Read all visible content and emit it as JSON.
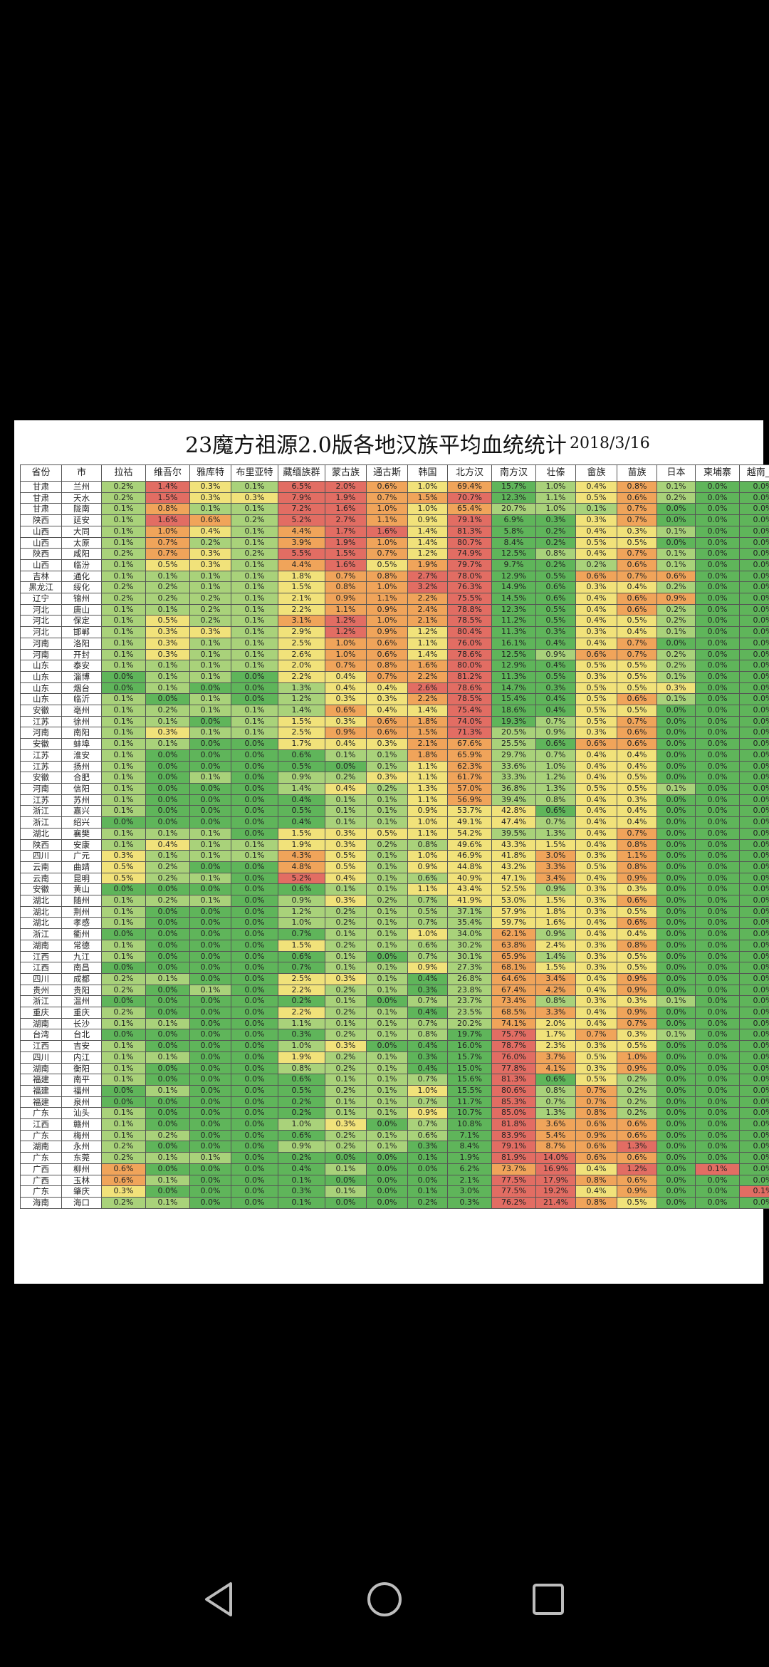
{
  "doc": {
    "title": "23魔方祖源2.0版各地汉族平均血统统计",
    "date": "2018/3/16"
  },
  "table": {
    "headers": [
      "省份",
      "市",
      "拉祜",
      "维吾尔",
      "雅库特",
      "布里亚特",
      "藏缅族群",
      "蒙古族",
      "通古斯",
      "韩国",
      "北方汉",
      "南方汉",
      "壮傣",
      "畲族",
      "苗族",
      "日本",
      "柬埔寨",
      "越南_京"
    ],
    "rows": [
      [
        "甘肃",
        "兰州",
        0.2,
        1.4,
        0.3,
        0.1,
        6.5,
        2.0,
        0.6,
        1.0,
        69.4,
        15.7,
        1.0,
        0.4,
        0.8,
        0.1,
        0.0,
        0.0
      ],
      [
        "甘肃",
        "天水",
        0.2,
        1.5,
        0.3,
        0.3,
        7.9,
        1.9,
        0.7,
        1.5,
        70.7,
        12.3,
        1.1,
        0.5,
        0.6,
        0.2,
        0.0,
        0.0
      ],
      [
        "甘肃",
        "陇南",
        0.1,
        0.8,
        0.1,
        0.1,
        7.2,
        1.6,
        1.0,
        1.0,
        65.4,
        20.7,
        1.0,
        0.1,
        0.7,
        0.0,
        0.0,
        0.0
      ],
      [
        "陕西",
        "延安",
        0.1,
        1.6,
        0.6,
        0.2,
        5.2,
        2.7,
        1.1,
        0.9,
        79.1,
        6.9,
        0.3,
        0.3,
        0.7,
        0.0,
        0.0,
        0.0
      ],
      [
        "山西",
        "大同",
        0.1,
        1.0,
        0.4,
        0.1,
        4.4,
        1.7,
        1.6,
        1.4,
        81.3,
        5.8,
        0.2,
        0.4,
        0.3,
        0.1,
        0.0,
        0.0
      ],
      [
        "山西",
        "太原",
        0.1,
        0.7,
        0.2,
        0.1,
        3.9,
        1.9,
        1.0,
        1.4,
        80.7,
        8.4,
        0.2,
        0.5,
        0.5,
        0.0,
        0.0,
        0.0
      ],
      [
        "陕西",
        "咸阳",
        0.2,
        0.7,
        0.3,
        0.2,
        5.5,
        1.5,
        0.7,
        1.2,
        74.9,
        12.5,
        0.8,
        0.4,
        0.7,
        0.1,
        0.0,
        0.0
      ],
      [
        "山西",
        "临汾",
        0.1,
        0.5,
        0.3,
        0.1,
        4.4,
        1.6,
        0.5,
        1.9,
        79.7,
        9.7,
        0.2,
        0.2,
        0.6,
        0.1,
        0.0,
        0.0
      ],
      [
        "吉林",
        "通化",
        0.1,
        0.1,
        0.1,
        0.1,
        1.8,
        0.7,
        0.8,
        2.7,
        78.0,
        12.9,
        0.5,
        0.6,
        0.7,
        0.6,
        0.0,
        0.0
      ],
      [
        "黑龙江",
        "绥化",
        0.2,
        0.2,
        0.1,
        0.1,
        1.5,
        0.8,
        1.0,
        3.2,
        76.3,
        14.9,
        0.6,
        0.3,
        0.4,
        0.2,
        0.0,
        0.0
      ],
      [
        "辽宁",
        "锦州",
        0.2,
        0.2,
        0.2,
        0.1,
        2.1,
        0.9,
        1.1,
        2.2,
        75.5,
        14.5,
        0.6,
        0.4,
        0.6,
        0.9,
        0.0,
        0.0
      ],
      [
        "河北",
        "唐山",
        0.1,
        0.1,
        0.2,
        0.1,
        2.2,
        1.1,
        0.9,
        2.4,
        78.8,
        12.3,
        0.5,
        0.4,
        0.6,
        0.2,
        0.0,
        0.0
      ],
      [
        "河北",
        "保定",
        0.1,
        0.5,
        0.2,
        0.1,
        3.1,
        1.2,
        1.0,
        2.1,
        78.5,
        11.2,
        0.5,
        0.4,
        0.5,
        0.2,
        0.0,
        0.0
      ],
      [
        "河北",
        "邯郸",
        0.1,
        0.3,
        0.3,
        0.1,
        2.9,
        1.2,
        0.9,
        1.2,
        80.4,
        11.3,
        0.3,
        0.3,
        0.4,
        0.1,
        0.0,
        0.0
      ],
      [
        "河南",
        "洛阳",
        0.1,
        0.3,
        0.1,
        0.1,
        2.5,
        1.0,
        0.6,
        1.1,
        76.0,
        16.1,
        0.4,
        0.4,
        0.7,
        0.0,
        0.0,
        0.0
      ],
      [
        "河南",
        "开封",
        0.1,
        0.3,
        0.1,
        0.1,
        2.6,
        1.0,
        0.6,
        1.4,
        78.6,
        12.5,
        0.9,
        0.6,
        0.7,
        0.2,
        0.0,
        0.0
      ],
      [
        "山东",
        "泰安",
        0.1,
        0.1,
        0.1,
        0.1,
        2.0,
        0.7,
        0.8,
        1.6,
        80.0,
        12.9,
        0.4,
        0.5,
        0.5,
        0.2,
        0.0,
        0.0
      ],
      [
        "山东",
        "淄博",
        0.0,
        0.1,
        0.1,
        0.0,
        2.2,
        0.4,
        0.7,
        2.2,
        81.2,
        11.3,
        0.5,
        0.3,
        0.5,
        0.1,
        0.0,
        0.0
      ],
      [
        "山东",
        "烟台",
        0.0,
        0.1,
        0.0,
        0.0,
        1.3,
        0.4,
        0.4,
        2.6,
        78.6,
        14.7,
        0.3,
        0.5,
        0.5,
        0.3,
        0.0,
        0.0
      ],
      [
        "山东",
        "临沂",
        0.1,
        0.0,
        0.1,
        0.0,
        1.2,
        0.3,
        0.3,
        2.2,
        78.5,
        15.4,
        0.4,
        0.5,
        0.6,
        0.1,
        0.0,
        0.0
      ],
      [
        "安徽",
        "亳州",
        0.1,
        0.2,
        0.1,
        0.1,
        1.4,
        0.6,
        0.4,
        1.4,
        75.4,
        18.6,
        0.4,
        0.5,
        0.5,
        0.0,
        0.0,
        0.0
      ],
      [
        "江苏",
        "徐州",
        0.1,
        0.1,
        0.0,
        0.1,
        1.5,
        0.3,
        0.6,
        1.8,
        74.0,
        19.3,
        0.7,
        0.5,
        0.7,
        0.0,
        0.0,
        0.0
      ],
      [
        "河南",
        "南阳",
        0.1,
        0.3,
        0.1,
        0.1,
        2.5,
        0.9,
        0.6,
        1.5,
        71.3,
        20.5,
        0.9,
        0.3,
        0.6,
        0.0,
        0.0,
        0.0
      ],
      [
        "安徽",
        "蚌埠",
        0.1,
        0.1,
        0.0,
        0.0,
        1.7,
        0.4,
        0.3,
        2.1,
        67.6,
        25.5,
        0.6,
        0.6,
        0.6,
        0.0,
        0.0,
        0.0
      ],
      [
        "江苏",
        "淮安",
        0.1,
        0.0,
        0.0,
        0.0,
        0.6,
        0.1,
        0.1,
        1.8,
        65.9,
        29.7,
        0.7,
        0.4,
        0.4,
        0.0,
        0.0,
        0.0
      ],
      [
        "江苏",
        "扬州",
        0.1,
        0.0,
        0.0,
        0.0,
        0.5,
        0.0,
        0.1,
        1.1,
        62.3,
        33.6,
        1.0,
        0.4,
        0.4,
        0.0,
        0.0,
        0.0
      ],
      [
        "安徽",
        "合肥",
        0.1,
        0.0,
        0.1,
        0.0,
        0.9,
        0.2,
        0.3,
        1.1,
        61.7,
        33.3,
        1.2,
        0.4,
        0.5,
        0.0,
        0.0,
        0.0
      ],
      [
        "河南",
        "信阳",
        0.1,
        0.0,
        0.0,
        0.0,
        1.4,
        0.4,
        0.2,
        1.3,
        57.0,
        36.8,
        1.3,
        0.5,
        0.5,
        0.1,
        0.0,
        0.0
      ],
      [
        "江苏",
        "苏州",
        0.1,
        0.0,
        0.0,
        0.0,
        0.4,
        0.1,
        0.1,
        1.1,
        56.9,
        39.4,
        0.8,
        0.4,
        0.3,
        0.0,
        0.0,
        0.0
      ],
      [
        "浙江",
        "嘉兴",
        0.1,
        0.0,
        0.0,
        0.0,
        0.5,
        0.1,
        0.1,
        0.9,
        53.7,
        42.8,
        0.6,
        0.4,
        0.4,
        0.0,
        0.0,
        0.0
      ],
      [
        "浙江",
        "绍兴",
        0.0,
        0.0,
        0.0,
        0.0,
        0.4,
        0.1,
        0.1,
        1.0,
        49.1,
        47.4,
        0.7,
        0.4,
        0.4,
        0.0,
        0.0,
        0.0
      ],
      [
        "湖北",
        "襄樊",
        0.1,
        0.1,
        0.1,
        0.0,
        1.5,
        0.3,
        0.5,
        1.1,
        54.2,
        39.5,
        1.3,
        0.4,
        0.7,
        0.0,
        0.0,
        0.0
      ],
      [
        "陕西",
        "安康",
        0.1,
        0.4,
        0.1,
        0.1,
        1.9,
        0.3,
        0.2,
        0.8,
        49.6,
        43.3,
        1.5,
        0.4,
        0.8,
        0.0,
        0.0,
        0.0
      ],
      [
        "四川",
        "广元",
        0.3,
        0.1,
        0.1,
        0.1,
        4.3,
        0.5,
        0.1,
        1.0,
        46.9,
        41.8,
        3.0,
        0.3,
        1.1,
        0.0,
        0.0,
        0.0
      ],
      [
        "云南",
        "曲靖",
        0.5,
        0.2,
        0.0,
        0.0,
        4.8,
        0.5,
        0.1,
        0.9,
        44.8,
        43.2,
        3.3,
        0.5,
        0.8,
        0.0,
        0.0,
        0.0
      ],
      [
        "云南",
        "昆明",
        0.5,
        0.2,
        0.1,
        0.0,
        5.2,
        0.4,
        0.1,
        0.6,
        40.9,
        47.1,
        3.4,
        0.4,
        0.9,
        0.0,
        0.0,
        0.0
      ],
      [
        "安徽",
        "黄山",
        0.0,
        0.0,
        0.0,
        0.0,
        0.6,
        0.1,
        0.1,
        1.1,
        43.4,
        52.5,
        0.9,
        0.3,
        0.3,
        0.0,
        0.0,
        0.0
      ],
      [
        "湖北",
        "随州",
        0.1,
        0.2,
        0.1,
        0.0,
        0.9,
        0.3,
        0.2,
        0.7,
        41.9,
        53.0,
        1.5,
        0.3,
        0.6,
        0.0,
        0.0,
        0.0
      ],
      [
        "湖北",
        "荆州",
        0.1,
        0.0,
        0.0,
        0.0,
        1.2,
        0.2,
        0.1,
        0.5,
        37.1,
        57.9,
        1.8,
        0.3,
        0.5,
        0.0,
        0.0,
        0.0
      ],
      [
        "湖北",
        "孝感",
        0.1,
        0.0,
        0.0,
        0.0,
        1.0,
        0.2,
        0.1,
        0.7,
        35.4,
        59.7,
        1.6,
        0.4,
        0.6,
        0.0,
        0.0,
        0.0
      ],
      [
        "浙江",
        "衢州",
        0.0,
        0.0,
        0.0,
        0.0,
        0.7,
        0.1,
        0.1,
        1.0,
        34.0,
        62.1,
        0.9,
        0.4,
        0.4,
        0.0,
        0.0,
        0.0
      ],
      [
        "湖南",
        "常德",
        0.1,
        0.0,
        0.0,
        0.0,
        1.5,
        0.2,
        0.1,
        0.6,
        30.2,
        63.8,
        2.4,
        0.3,
        0.8,
        0.0,
        0.0,
        0.0
      ],
      [
        "江西",
        "九江",
        0.1,
        0.0,
        0.0,
        0.0,
        0.6,
        0.1,
        0.0,
        0.7,
        30.1,
        65.9,
        1.4,
        0.3,
        0.5,
        0.0,
        0.0,
        0.0
      ],
      [
        "江西",
        "南昌",
        0.0,
        0.0,
        0.0,
        0.0,
        0.7,
        0.1,
        0.1,
        0.9,
        27.3,
        68.1,
        1.5,
        0.3,
        0.5,
        0.0,
        0.0,
        0.0
      ],
      [
        "四川",
        "成都",
        0.2,
        0.1,
        0.0,
        0.0,
        2.5,
        0.3,
        0.1,
        0.4,
        26.8,
        64.6,
        3.4,
        0.4,
        0.9,
        0.0,
        0.0,
        0.0
      ],
      [
        "贵州",
        "贵阳",
        0.2,
        0.0,
        0.1,
        0.0,
        2.2,
        0.2,
        0.1,
        0.3,
        23.8,
        67.4,
        4.2,
        0.4,
        0.9,
        0.0,
        0.0,
        0.0
      ],
      [
        "浙江",
        "温州",
        0.0,
        0.0,
        0.0,
        0.0,
        0.2,
        0.1,
        0.0,
        0.7,
        23.7,
        73.4,
        0.8,
        0.3,
        0.3,
        0.1,
        0.0,
        0.0
      ],
      [
        "重庆",
        "重庆",
        0.2,
        0.0,
        0.0,
        0.0,
        2.2,
        0.2,
        0.1,
        0.4,
        23.5,
        68.5,
        3.3,
        0.4,
        0.9,
        0.0,
        0.0,
        0.0
      ],
      [
        "湖南",
        "长沙",
        0.1,
        0.1,
        0.0,
        0.0,
        1.1,
        0.1,
        0.1,
        0.7,
        20.2,
        74.1,
        2.0,
        0.4,
        0.7,
        0.0,
        0.0,
        0.0
      ],
      [
        "台湾",
        "台北",
        0.0,
        0.0,
        0.0,
        0.0,
        0.3,
        0.2,
        0.1,
        0.8,
        19.7,
        75.7,
        1.7,
        0.7,
        0.3,
        0.1,
        0.0,
        0.0
      ],
      [
        "江西",
        "吉安",
        0.1,
        0.0,
        0.0,
        0.0,
        1.0,
        0.3,
        0.0,
        0.4,
        16.0,
        78.7,
        2.3,
        0.3,
        0.5,
        0.0,
        0.0,
        0.0
      ],
      [
        "四川",
        "内江",
        0.1,
        0.1,
        0.0,
        0.0,
        1.9,
        0.2,
        0.1,
        0.3,
        15.7,
        76.0,
        3.7,
        0.5,
        1.0,
        0.0,
        0.0,
        0.0
      ],
      [
        "湖南",
        "衡阳",
        0.1,
        0.0,
        0.0,
        0.0,
        0.8,
        0.2,
        0.1,
        0.4,
        15.0,
        77.8,
        4.1,
        0.3,
        0.9,
        0.0,
        0.0,
        0.0
      ],
      [
        "福建",
        "南平",
        0.1,
        0.0,
        0.0,
        0.0,
        0.6,
        0.1,
        0.1,
        0.7,
        15.6,
        81.3,
        0.6,
        0.5,
        0.2,
        0.0,
        0.0,
        0.0
      ],
      [
        "福建",
        "福州",
        0.0,
        0.1,
        0.0,
        0.0,
        0.5,
        0.2,
        0.1,
        1.0,
        15.5,
        80.6,
        0.8,
        0.7,
        0.2,
        0.0,
        0.0,
        0.0
      ],
      [
        "福建",
        "泉州",
        0.0,
        0.0,
        0.0,
        0.0,
        0.2,
        0.1,
        0.1,
        0.7,
        11.7,
        85.3,
        0.7,
        0.7,
        0.2,
        0.0,
        0.0,
        0.0
      ],
      [
        "广东",
        "汕头",
        0.1,
        0.0,
        0.0,
        0.0,
        0.2,
        0.1,
        0.1,
        0.9,
        10.7,
        85.0,
        1.3,
        0.8,
        0.2,
        0.0,
        0.0,
        0.0
      ],
      [
        "江西",
        "赣州",
        0.1,
        0.0,
        0.0,
        0.0,
        1.0,
        0.3,
        0.0,
        0.7,
        10.8,
        81.8,
        3.6,
        0.6,
        0.6,
        0.0,
        0.0,
        0.0
      ],
      [
        "广东",
        "梅州",
        0.1,
        0.2,
        0.0,
        0.0,
        0.6,
        0.2,
        0.1,
        0.6,
        7.1,
        83.9,
        5.4,
        0.9,
        0.6,
        0.0,
        0.0,
        0.0
      ],
      [
        "湖南",
        "永州",
        0.2,
        0.0,
        0.0,
        0.0,
        0.9,
        0.2,
        0.1,
        0.3,
        8.4,
        79.1,
        8.7,
        0.6,
        1.3,
        0.0,
        0.0,
        0.0
      ],
      [
        "广东",
        "东莞",
        0.2,
        0.1,
        0.1,
        0.0,
        0.2,
        0.0,
        0.0,
        0.1,
        1.9,
        81.9,
        14.0,
        0.6,
        0.6,
        0.0,
        0.0,
        0.0
      ],
      [
        "广西",
        "柳州",
        0.6,
        0.0,
        0.0,
        0.0,
        0.4,
        0.1,
        0.0,
        0.0,
        6.2,
        73.7,
        16.9,
        0.4,
        1.2,
        0.0,
        0.1,
        0.0
      ],
      [
        "广西",
        "玉林",
        0.6,
        0.1,
        0.0,
        0.0,
        0.1,
        0.0,
        0.0,
        0.0,
        2.1,
        77.5,
        17.9,
        0.8,
        0.6,
        0.0,
        0.0,
        0.0
      ],
      [
        "广东",
        "肇庆",
        0.3,
        0.0,
        0.0,
        0.0,
        0.3,
        0.1,
        0.0,
        0.1,
        3.0,
        77.5,
        19.2,
        0.4,
        0.9,
        0.0,
        0.0,
        0.1
      ],
      [
        "海南",
        "海口",
        0.2,
        0.1,
        0.0,
        0.0,
        0.1,
        0.0,
        0.0,
        0.2,
        0.3,
        76.2,
        21.4,
        0.8,
        0.5,
        0.0,
        0.0,
        0.0
      ]
    ]
  },
  "colors": {
    "green": "#5fb55a",
    "light_green": "#a9d27a",
    "yellow": "#f1e27a",
    "orange": "#f0a45a",
    "red": "#e26d63",
    "white": "#ffffff"
  },
  "nav": {
    "back_icon": "triangle-back-icon",
    "home_icon": "circle-home-icon",
    "recent_icon": "square-recent-icon"
  }
}
